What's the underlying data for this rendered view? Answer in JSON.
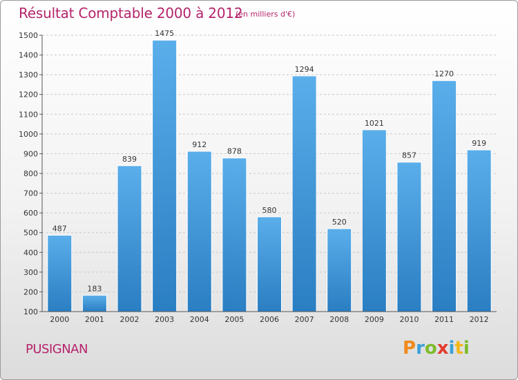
{
  "title": "Résultat Comptable 2000 à 2012",
  "subtitle": "(en milliers d'€)",
  "commune": "PUSIGNAN",
  "logo": [
    "P",
    "r",
    "o",
    "x",
    "i",
    "t",
    "i"
  ],
  "colors": {
    "title": "#b5236a",
    "bar_top": "#5aaeea",
    "bar_bottom": "#2a7ec2",
    "grid": "#cccccc"
  },
  "chart_data": {
    "type": "bar",
    "title": "Résultat Comptable 2000 à 2012",
    "xlabel": "",
    "ylabel": "",
    "categories": [
      "2000",
      "2001",
      "2002",
      "2003",
      "2004",
      "2005",
      "2006",
      "2007",
      "2008",
      "2009",
      "2010",
      "2011",
      "2012"
    ],
    "values": [
      487,
      183,
      839,
      1475,
      912,
      878,
      580,
      1294,
      520,
      1021,
      857,
      1270,
      919
    ],
    "ylim": [
      100,
      1500
    ],
    "yticks": [
      100,
      200,
      300,
      400,
      500,
      600,
      700,
      800,
      900,
      1000,
      1100,
      1200,
      1300,
      1400,
      1500
    ],
    "grid": "horizontal-dashed"
  }
}
